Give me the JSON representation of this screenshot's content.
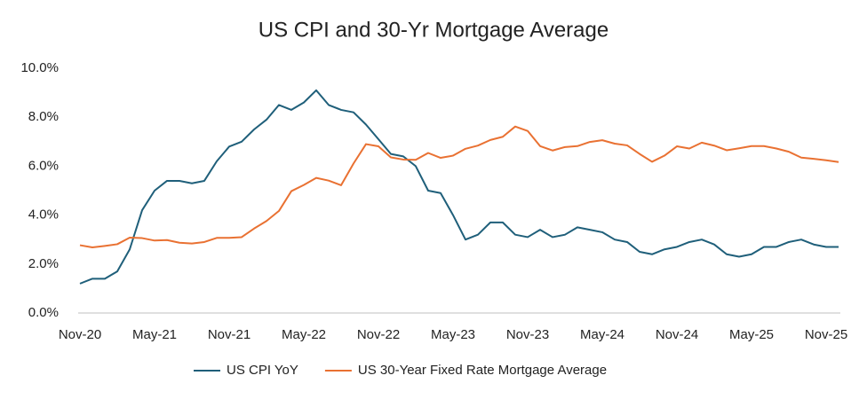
{
  "chart_data": {
    "type": "line",
    "title": "US CPI and 30-Yr Mortgage Average",
    "categories": [
      "Nov-20",
      null,
      null,
      null,
      null,
      null,
      "May-21",
      null,
      null,
      null,
      null,
      null,
      "Nov-21",
      null,
      null,
      null,
      null,
      null,
      "May-22",
      null,
      null,
      null,
      null,
      null,
      "Nov-22",
      null,
      null,
      null,
      null,
      null,
      "May-23",
      null,
      null,
      null,
      null,
      null,
      "Nov-23",
      null,
      null,
      null,
      null,
      null,
      "May-24",
      null,
      null,
      null,
      null,
      null,
      "Nov-24",
      null,
      null,
      null,
      null,
      null,
      "May-25",
      null,
      null,
      null,
      null,
      null,
      "Nov-25",
      null
    ],
    "series": [
      {
        "name": "US CPI YoY",
        "color": "#1f5f7a",
        "values": [
          1.2,
          1.4,
          1.4,
          1.7,
          2.6,
          4.2,
          5.0,
          5.4,
          5.4,
          5.3,
          5.4,
          6.2,
          6.8,
          7.0,
          7.5,
          7.9,
          8.5,
          8.3,
          8.6,
          9.1,
          8.5,
          8.3,
          8.2,
          7.7,
          7.1,
          6.5,
          6.4,
          6.0,
          5.0,
          4.9,
          4.0,
          3.0,
          3.2,
          3.7,
          3.7,
          3.2,
          3.1,
          3.4,
          3.1,
          3.2,
          3.5,
          3.4,
          3.3,
          3.0,
          2.9,
          2.5,
          2.4,
          2.6,
          2.7,
          2.9,
          3.0,
          2.8,
          2.4,
          2.3,
          2.4,
          2.7,
          2.7,
          2.9,
          3.0,
          2.8,
          2.7,
          2.7
        ]
      },
      {
        "name": "US 30-Year Fixed Rate Mortgage Average",
        "color": "#e97132",
        "values": [
          2.77,
          2.68,
          2.74,
          2.81,
          3.08,
          3.06,
          2.96,
          2.98,
          2.87,
          2.84,
          2.9,
          3.07,
          3.07,
          3.1,
          3.45,
          3.76,
          4.17,
          4.98,
          5.23,
          5.52,
          5.41,
          5.22,
          6.11,
          6.9,
          6.81,
          6.36,
          6.27,
          6.26,
          6.54,
          6.34,
          6.43,
          6.71,
          6.84,
          7.07,
          7.2,
          7.62,
          7.44,
          6.82,
          6.64,
          6.78,
          6.82,
          6.99,
          7.06,
          6.92,
          6.85,
          6.5,
          6.18,
          6.43,
          6.81,
          6.72,
          6.96,
          6.84,
          6.65,
          6.73,
          6.82,
          6.82,
          6.72,
          6.59,
          6.35,
          6.3,
          6.24,
          6.17
        ]
      }
    ],
    "ylim": [
      0,
      10
    ],
    "yticks": [
      {
        "value": 0,
        "label": "0.0%"
      },
      {
        "value": 2,
        "label": "2.0%"
      },
      {
        "value": 4,
        "label": "4.0%"
      },
      {
        "value": 6,
        "label": "6.0%"
      },
      {
        "value": 8,
        "label": "8.0%"
      },
      {
        "value": 10,
        "label": "10.0%"
      }
    ],
    "legend": "bottom"
  }
}
